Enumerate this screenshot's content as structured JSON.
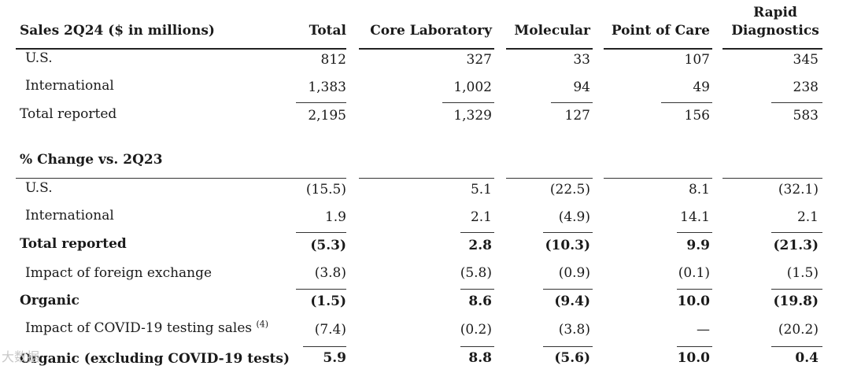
{
  "header": {
    "title": "Sales 2Q24 ($ in millions)",
    "columns": [
      "Total",
      "Core Laboratory",
      "Molecular",
      "Point of Care",
      "Rapid Diagnostics"
    ],
    "rapid_line1": "Rapid",
    "rapid_line2": "Diagnostics"
  },
  "sales": [
    {
      "label": "U.S.",
      "values": [
        "812",
        "327",
        "33",
        "107",
        "345"
      ]
    },
    {
      "label": "International",
      "values": [
        "1,383",
        "1,002",
        "94",
        "49",
        "238"
      ]
    },
    {
      "label": "Total reported",
      "values": [
        "2,195",
        "1,329",
        "127",
        "156",
        "583"
      ]
    }
  ],
  "change_section_title": "% Change vs. 2Q23",
  "change": [
    {
      "label": "U.S.",
      "values": [
        "(15.5)",
        "5.1",
        "(22.5)",
        "8.1",
        "(32.1)"
      ]
    },
    {
      "label": "International",
      "values": [
        "1.9",
        "2.1",
        "(4.9)",
        "14.1",
        "2.1"
      ]
    },
    {
      "label": "Total reported",
      "values": [
        "(5.3)",
        "2.8",
        "(10.3)",
        "9.9",
        "(21.3)"
      ]
    },
    {
      "label": "Impact of foreign exchange",
      "values": [
        "(3.8)",
        "(5.8)",
        "(0.9)",
        "(0.1)",
        "(1.5)"
      ]
    },
    {
      "label": "Organic",
      "values": [
        "(1.5)",
        "8.6",
        "(9.4)",
        "10.0",
        "(19.8)"
      ]
    },
    {
      "label": "Impact of COVID-19 testing sales",
      "footnote": "(4)",
      "values": [
        "(7.4)",
        "(0.2)",
        "(3.8)",
        "—",
        "(20.2)"
      ]
    },
    {
      "label": "Organic (excluding COVID-19 tests)",
      "values": [
        "5.9",
        "8.8",
        "(5.6)",
        "10.0",
        "0.4"
      ]
    }
  ],
  "watermark": "大数据"
}
